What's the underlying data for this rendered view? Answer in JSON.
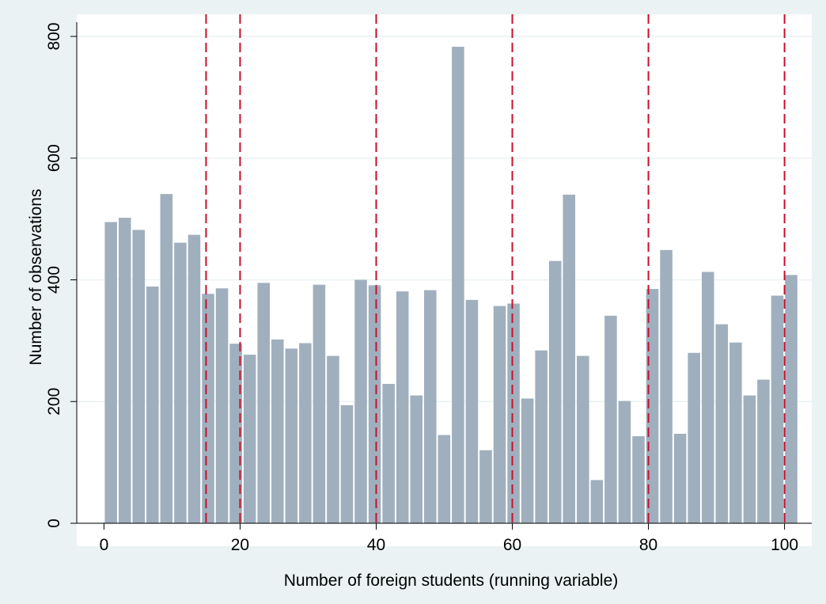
{
  "chart_data": {
    "type": "histogram",
    "x_label": "Number of foreign students (running variable)",
    "y_label": "Number of observations",
    "bins": [
      0,
      2.04,
      4.08,
      6.12,
      8.16,
      10.2,
      12.24,
      14.28,
      16.32,
      18.36,
      20.4,
      22.44,
      24.48,
      26.52,
      28.56,
      30.6,
      32.64,
      34.68,
      36.72,
      38.76,
      40.8,
      42.84,
      44.88,
      46.92,
      48.96,
      51,
      53.04,
      55.08,
      57.12,
      59.16,
      61.2,
      63.24,
      65.28,
      67.32,
      69.36,
      71.4,
      73.44,
      75.48,
      77.52,
      79.56,
      81.6,
      83.64,
      85.68,
      87.72,
      89.76,
      91.8,
      93.84,
      95.88,
      97.92,
      99.96,
      102
    ],
    "counts": [
      495,
      502,
      482,
      389,
      541,
      461,
      474,
      377,
      386,
      295,
      277,
      395,
      302,
      287,
      296,
      392,
      275,
      194,
      400,
      391,
      229,
      381,
      210,
      383,
      145,
      783,
      367,
      120,
      357,
      361,
      205,
      284,
      431,
      540,
      275,
      71,
      341,
      201,
      143,
      385,
      449,
      147,
      280,
      413,
      327,
      297,
      210,
      236,
      374,
      408
    ],
    "color": "#a0afbd",
    "vlines": [
      15,
      20,
      40,
      60,
      80,
      100
    ],
    "vline_color": "#c8102e",
    "xlim": [
      -4,
      104
    ],
    "xticks": [
      0,
      20,
      40,
      60,
      80,
      100
    ],
    "ylim": [
      0,
      800
    ],
    "yticks": [
      0,
      200,
      400,
      600,
      800
    ],
    "grid": true
  }
}
